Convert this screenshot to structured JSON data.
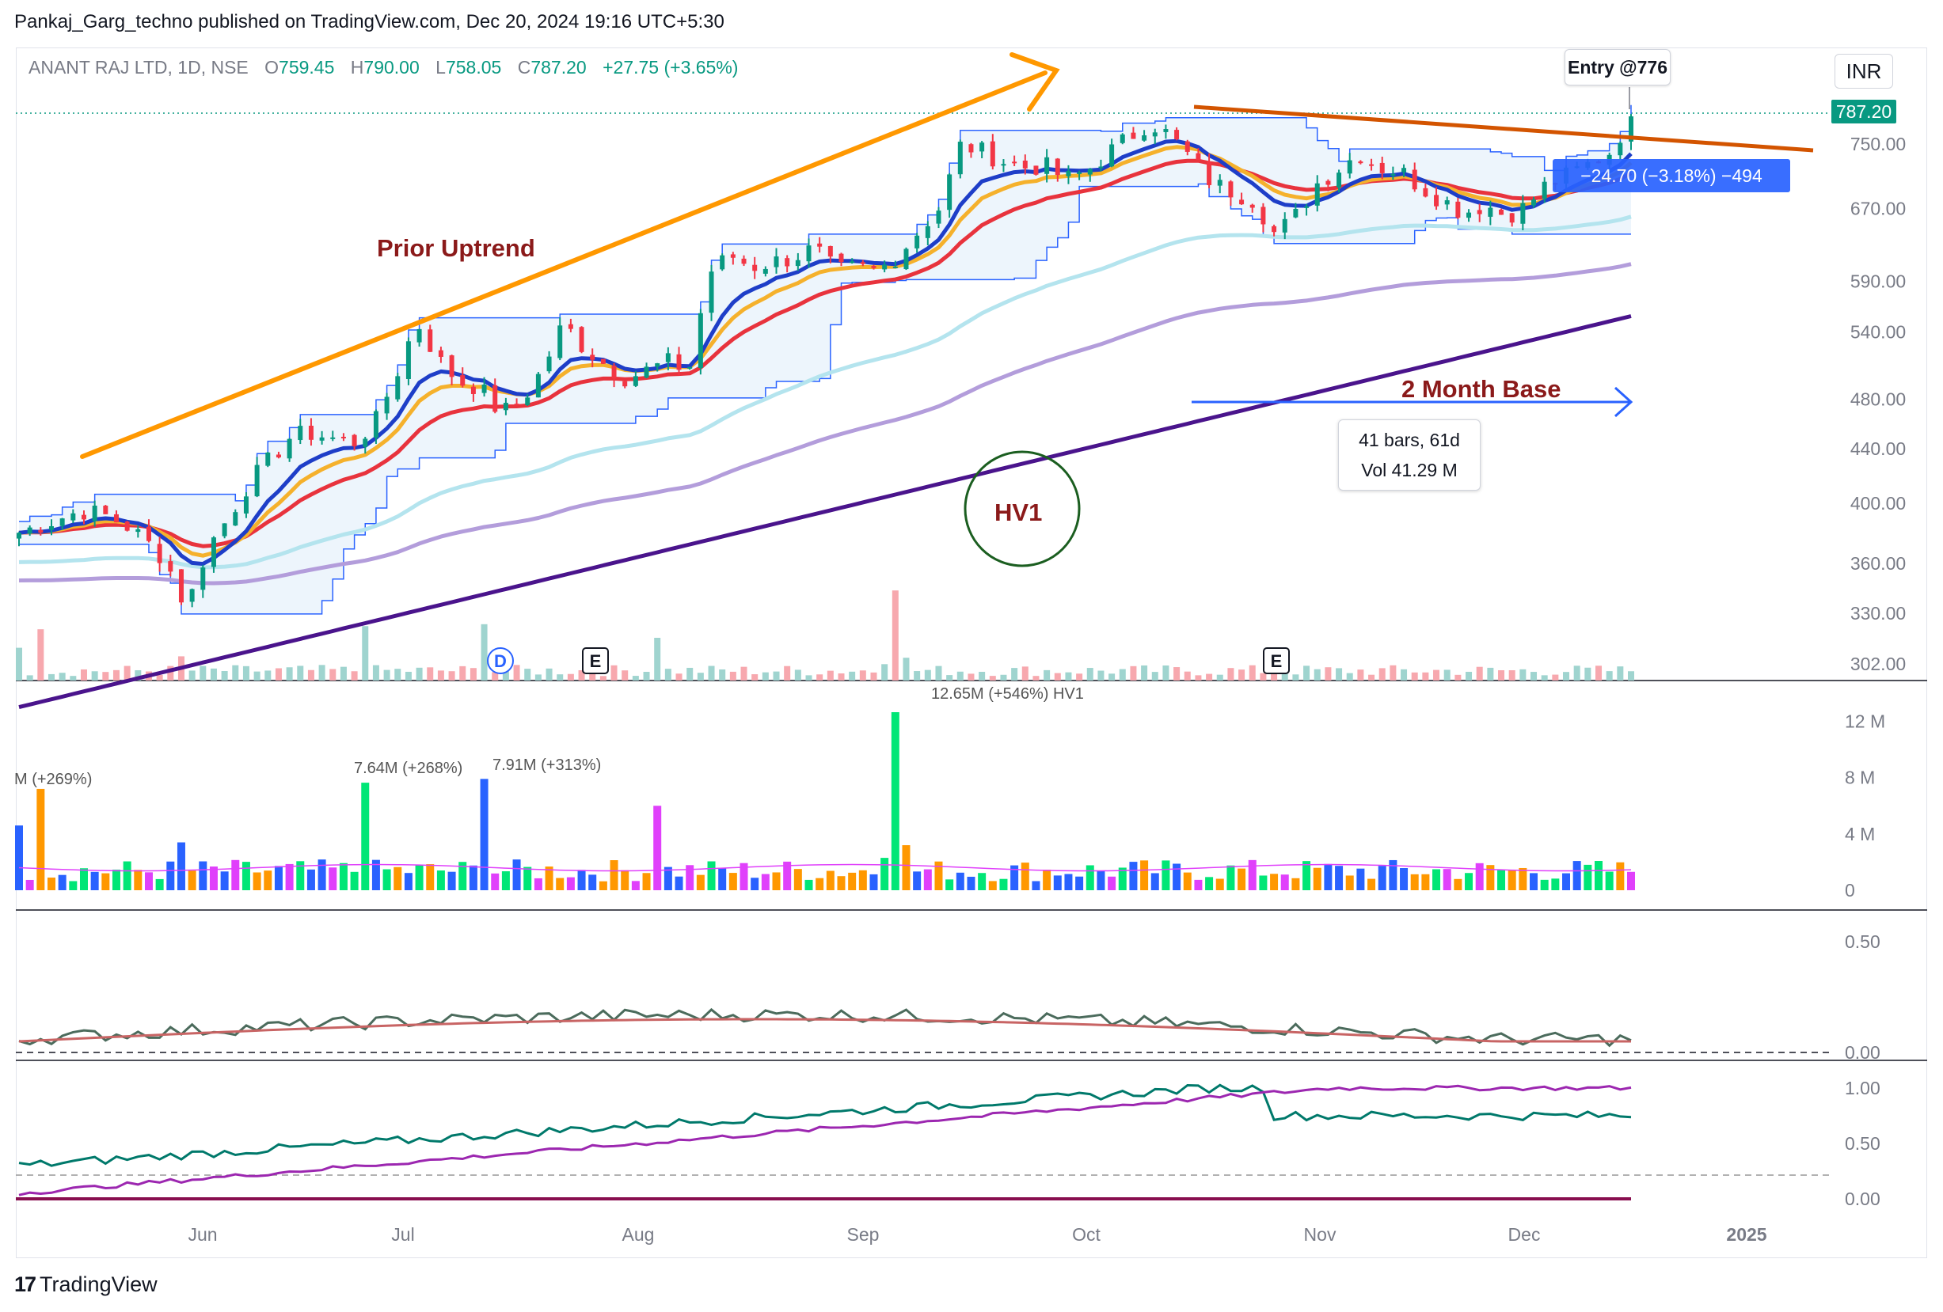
{
  "header": {
    "publisher": "Pankaj_Garg_techno published on TradingView.com, Dec 20, 2024 19:16 UTC+5:30"
  },
  "legend": {
    "symbol": "ANANT RAJ LTD, 1D, NSE",
    "o_label": "O",
    "o_value": "759.45",
    "h_label": "H",
    "h_value": "790.00",
    "l_label": "L",
    "l_value": "758.05",
    "c_label": "C",
    "c_value": "787.20",
    "change": "+27.75 (+3.65%)"
  },
  "currency": "INR",
  "last_price_tag": "787.20",
  "entry_label": "Entry @776",
  "position_label": "−24.70 (−3.18%) −494",
  "range_box": {
    "bars": "41 bars, 61d",
    "vol": "Vol 41.29 M"
  },
  "annotations": {
    "prior_uptrend": "Prior Uptrend",
    "base": "2 Month Base",
    "hv1": "HV1"
  },
  "volume_labels": {
    "hv1": "12.65M (+546%) HV1",
    "jul1": "7.64M (+268%)",
    "jul2": "7.91M (+313%)",
    "left": "M (+269%)"
  },
  "event_markers": {
    "dividend": "D",
    "earnings": "E"
  },
  "brand": "TradingView",
  "colors": {
    "up": "#089981",
    "down": "#f23645",
    "ema_blue": "#1e3ec8",
    "ema_orange": "#f5b12c",
    "ema_red": "#e8333d",
    "sma_light": "#b4e4ee",
    "sma_purple_light": "#b39ddb",
    "sma_purple_dark": "#4a148c",
    "trend_arrow": "#ff9800",
    "resistance": "#d35400",
    "hv_circle": "#1b5e20",
    "base_arrow": "#2962ff"
  },
  "chart_data": [
    {
      "type": "candlestick",
      "title": "ANANT RAJ LTD, 1D, NSE",
      "price_axis_ticks": [
        "750.00",
        "670.00",
        "590.00",
        "540.00",
        "480.00",
        "440.00",
        "400.00",
        "360.00",
        "330.00",
        "302.00"
      ],
      "price_axis_values": [
        750,
        670,
        590,
        540,
        480,
        440,
        400,
        360,
        330,
        302
      ],
      "scale": "log",
      "x_ticks": [
        "Jun",
        "Jul",
        "Aug",
        "Sep",
        "Oct",
        "Nov",
        "Dec",
        "2025"
      ],
      "price_path": [
        380,
        385,
        390,
        395,
        392,
        386,
        375,
        362,
        332,
        370,
        390,
        415,
        432,
        450,
        452,
        448,
        445,
        460,
        500,
        550,
        515,
        495,
        490,
        468,
        478,
        505,
        548,
        525,
        510,
        498,
        505,
        512,
        505,
        600,
        617,
        605,
        610,
        615,
        625,
        600,
        604,
        600,
        618,
        645,
        672,
        750,
        740,
        728,
        720,
        722,
        705,
        715,
        738,
        758,
        780,
        760,
        730,
        700,
        690,
        680,
        640,
        662,
        700,
        718,
        738,
        720,
        715,
        695,
        680,
        665,
        675,
        662,
        672,
        700,
        710,
        724,
        740,
        787.2
      ],
      "last": {
        "open": 759.45,
        "high": 790.0,
        "low": 758.05,
        "close": 787.2
      },
      "entry": 776
    },
    {
      "type": "bar",
      "title": "Volume",
      "y_ticks": [
        "12 M",
        "8 M",
        "4 M",
        "0"
      ],
      "y_values": [
        12,
        8,
        4,
        0
      ],
      "unit": "M",
      "annotated_bars": [
        {
          "label": "12.65M (+546%) HV1",
          "value": 12.65
        },
        {
          "label": "7.64M (+268%)",
          "value": 7.64
        },
        {
          "label": "7.91M (+313%)",
          "value": 7.91
        }
      ]
    },
    {
      "type": "line",
      "title": "",
      "y_ticks": [
        "0.50",
        "0.00"
      ],
      "y_values": [
        0.5,
        0.0
      ]
    },
    {
      "type": "line",
      "title": "",
      "y_ticks": [
        "1.00",
        "0.50",
        "0.00"
      ],
      "y_values": [
        1.0,
        0.5,
        0.0
      ]
    }
  ]
}
